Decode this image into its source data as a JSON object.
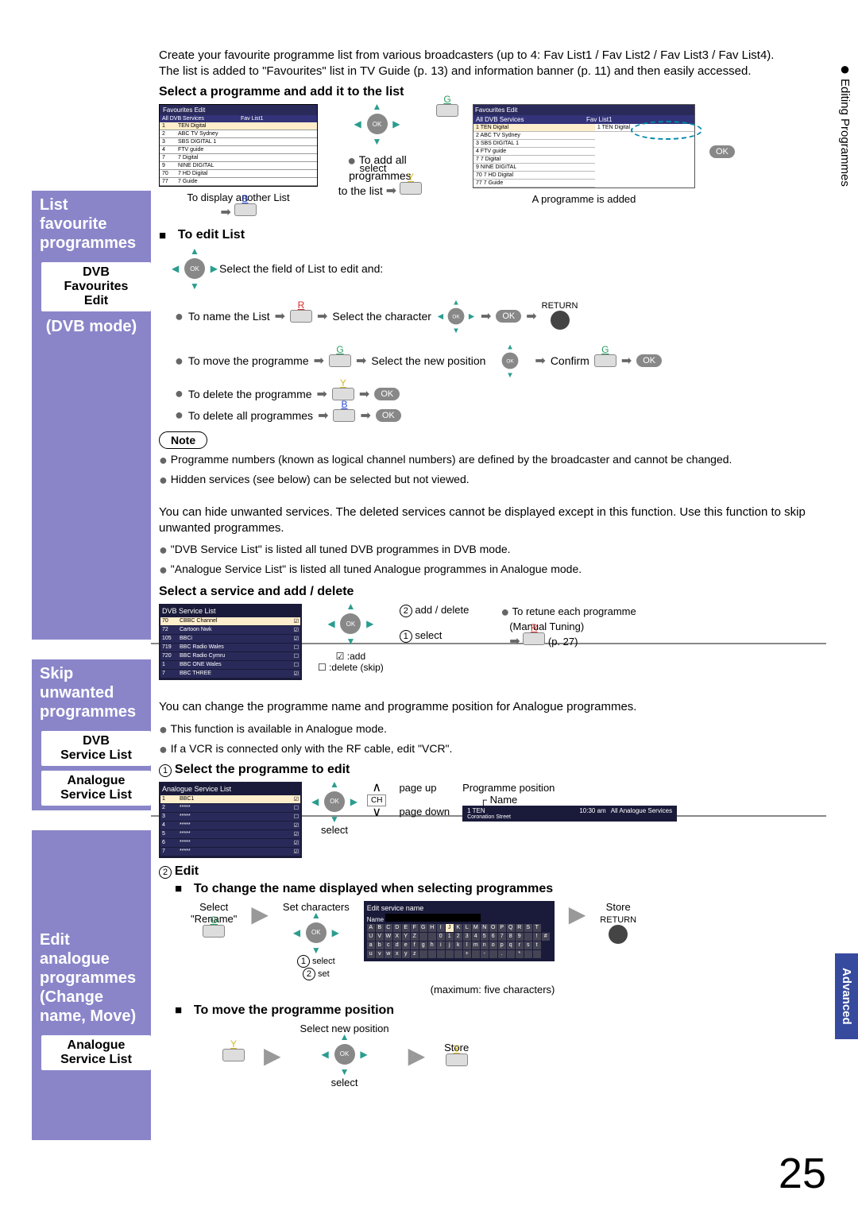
{
  "pageNumber": "25",
  "rightTabs": {
    "tab1": "Editing Programmes",
    "tab2": "Advanced"
  },
  "section1": {
    "sideTitle": "List\nfavourite\nprogrammes",
    "sideBox": "DVB\nFavourites\nEdit",
    "sideSub": "(DVB mode)",
    "intro": "Create your favourite programme list from various broadcasters (up to 4: Fav List1 / Fav List2 / Fav List3 / Fav List4).\nThe list is added to \"Favourites\" list in TV Guide (p. 13) and information banner (p. 11) and then easily accessed.",
    "subhead1": "Select a programme and add it to the list",
    "tableTitle": "Favourites Edit",
    "tableColA": "All DVB Services",
    "tableColB": "Fav List1",
    "channels": [
      {
        "n": "1",
        "name": "TEN Digital"
      },
      {
        "n": "2",
        "name": "ABC TV Sydney"
      },
      {
        "n": "3",
        "name": "SBS DIGITAL 1"
      },
      {
        "n": "4",
        "name": "FTV guide"
      },
      {
        "n": "7",
        "name": "7 Digital"
      },
      {
        "n": "9",
        "name": "NINE DIGITAL"
      },
      {
        "n": "70",
        "name": "7 HD Digital"
      },
      {
        "n": "77",
        "name": "7 Guide"
      }
    ],
    "dispAnother": "To display another List",
    "selectTxt": "select",
    "addAll1": "To add all",
    "addAll2": "programmes",
    "addAll3": "to the list",
    "addedTitle": "Favourites Edit",
    "addedCap": "A programme is added",
    "editHead": "To edit List",
    "editField": "Select the field of List to edit and:",
    "nameList": "To name the List",
    "selChar": "Select the character",
    "returnTxt": "RETURN",
    "moveProg": "To move the programme",
    "selPos": "Select the new position",
    "confirm": "Confirm",
    "delProg": "To delete the programme",
    "delAll": "To delete all programmes",
    "note": "Note",
    "noteB1": "Programme numbers (known as logical channel numbers) are defined by the broadcaster and cannot be changed.",
    "noteB2": "Hidden services (see below) can be selected but not viewed."
  },
  "section2": {
    "sideTitle": "Skip\nunwanted\nprogrammes",
    "sideBox1": "DVB\nService List",
    "sideBox2": "Analogue\nService List",
    "intro": "You can hide unwanted services. The deleted services cannot be displayed except in this function. Use this function to skip unwanted programmes.",
    "b1": "\"DVB Service List\" is listed all tuned DVB programmes in DVB mode.",
    "b2": "\"Analogue Service List\" is listed all tuned Analogue programmes in Analogue mode.",
    "subhead": "Select a service and add / delete",
    "svcTitle": "DVB Service List",
    "services": [
      {
        "n": "70",
        "name": "CBBC Channel",
        "chk": "☑",
        "sel": true
      },
      {
        "n": "72",
        "name": "Cartoon Nwk",
        "chk": "☑"
      },
      {
        "n": "105",
        "name": "BBCi",
        "chk": "☑"
      },
      {
        "n": "719",
        "name": "BBC Radio Wales",
        "chk": "☐"
      },
      {
        "n": "720",
        "name": "BBC Radio Cymru",
        "chk": "☐"
      },
      {
        "n": "1",
        "name": "BBC ONE Wales",
        "chk": "☐"
      },
      {
        "n": "7",
        "name": "BBC THREE",
        "chk": "☑"
      }
    ],
    "addDel": "add / delete",
    "selectTxt": "select",
    "addLegend": ":add",
    "delLegend": ":delete (skip)",
    "retune1": "To retune each programme",
    "retune2": "(Manual Tuning)",
    "retuneRef": "(p. 27)"
  },
  "section3": {
    "sideTitle": "Edit analogue\nprogrammes\n(Change\nname, Move)",
    "sideBox": "Analogue\nService List",
    "intro": "You can change the programme name and programme position for Analogue programmes.",
    "b1": "This function is available in Analogue mode.",
    "b2": "If a VCR is connected only with the RF cable, edit \"VCR\".",
    "step1": "Select the programme to edit",
    "anaTitle": "Analogue Service List",
    "anaRows": [
      {
        "n": "1",
        "name": "BBC1",
        "chk": "☑",
        "sel": true
      },
      {
        "n": "2",
        "name": "*****",
        "chk": "☐"
      },
      {
        "n": "3",
        "name": "*****",
        "chk": "☐"
      },
      {
        "n": "4",
        "name": "*****",
        "chk": "☑"
      },
      {
        "n": "5",
        "name": "*****",
        "chk": "☑"
      },
      {
        "n": "6",
        "name": "*****",
        "chk": "☑"
      },
      {
        "n": "7",
        "name": "*****",
        "chk": "☑"
      }
    ],
    "pageUp": "page up",
    "pageDown": "page down",
    "selectTxt": "select",
    "progPos": "Programme position",
    "nameLbl": "Name",
    "barCh": "1 TEN",
    "barTime": "10:30 am",
    "barSvc": "All Analogue Services",
    "barProg": "Coronation Street",
    "step2": "Edit",
    "changeName": "To change the name displayed when selecting programmes",
    "selRename": "Select\n\"Rename\"",
    "setChars": "Set characters",
    "store": "Store",
    "returnTxt": "RETURN",
    "osSelect": "select",
    "osSet": "set",
    "kbdTitle": "Edit service name",
    "kbdName": "Name",
    "maxChars": "(maximum: five characters)",
    "movePos": "To move the programme position",
    "selNewPos": "Select new position",
    "store2": "Store",
    "selectTxt2": "select"
  }
}
